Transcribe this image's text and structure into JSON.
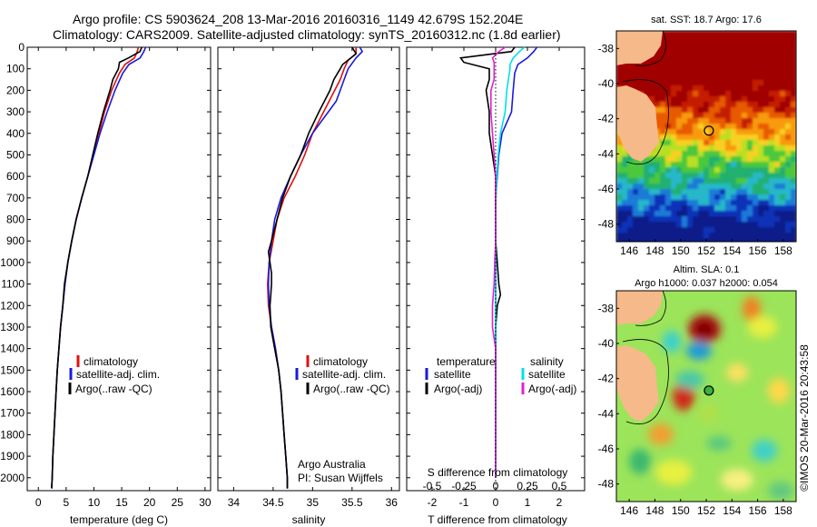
{
  "header": {
    "line1": "Argo profile: CS 5903624_208 13-Mar-2016 20160316_1149 42.679S 152.204E",
    "line2": "Climatology: CARS2009. Satellite-adjusted climatology: synTS_20160312.nc (1.8d earlier)"
  },
  "credit": "©IMOS 20-Mar-2016 20:43:58",
  "colors": {
    "climatology": "#e01010",
    "satellite": "#1a1adc",
    "argo": "#000000",
    "sat_temp_diff": "#00e0e8",
    "argo_sal_diff": "#e020d0"
  },
  "chart_data": [
    {
      "type": "line",
      "panel": "temperature",
      "xlabel": "temperature (deg C)",
      "ylabel": "",
      "xlim": [
        -2,
        31
      ],
      "ylim": [
        2060,
        0
      ],
      "xticks": [
        0,
        5,
        10,
        15,
        20,
        25,
        30
      ],
      "yticks": [
        0,
        100,
        200,
        300,
        400,
        500,
        600,
        700,
        800,
        900,
        1000,
        1100,
        1200,
        1300,
        1400,
        1500,
        1600,
        1700,
        1800,
        1900,
        2000
      ],
      "legend": [
        "climatology",
        "satellite-adj. clim.",
        "Argo(..raw -QC)"
      ],
      "series": [
        {
          "name": "climatology",
          "color": "climatology",
          "depth": [
            0,
            20,
            50,
            80,
            120,
            200,
            300,
            400,
            500,
            600,
            700,
            800,
            900,
            1000,
            1100,
            1200,
            1300,
            1400,
            1500,
            1600,
            1700,
            1800,
            1900,
            2000,
            2050
          ],
          "values": [
            18.0,
            17.8,
            17.3,
            15.6,
            14.6,
            13.2,
            11.9,
            10.9,
            9.9,
            8.9,
            7.8,
            6.8,
            6.0,
            5.3,
            4.8,
            4.4,
            4.0,
            3.7,
            3.4,
            3.2,
            3.0,
            2.8,
            2.6,
            2.5,
            2.4
          ]
        },
        {
          "name": "satellite-adj. clim.",
          "color": "satellite",
          "depth": [
            0,
            20,
            50,
            80,
            120,
            200,
            300,
            400,
            500,
            600,
            700,
            800,
            900,
            1000,
            1100,
            1200,
            1300,
            1400,
            1500,
            1600,
            1700,
            1800,
            1900,
            2000,
            2050
          ],
          "values": [
            19.3,
            19.0,
            18.3,
            16.3,
            15.2,
            13.8,
            12.4,
            11.1,
            10.0,
            8.9,
            7.8,
            6.8,
            6.0,
            5.3,
            4.8,
            4.4,
            4.0,
            3.7,
            3.4,
            3.2,
            3.0,
            2.8,
            2.6,
            2.5,
            2.4
          ]
        },
        {
          "name": "Argo(..raw -QC)",
          "color": "argo",
          "depth": [
            0,
            20,
            50,
            70,
            100,
            150,
            200,
            300,
            400,
            500,
            600,
            700,
            800,
            900,
            1000,
            1100,
            1200,
            1300,
            1400,
            1500,
            1600,
            1700,
            1800,
            1900,
            2000,
            2050
          ],
          "values": [
            18.6,
            18.3,
            16.2,
            14.6,
            14.4,
            13.4,
            12.9,
            11.7,
            10.7,
            9.8,
            8.9,
            7.8,
            6.8,
            6.0,
            5.3,
            4.7,
            4.4,
            4.0,
            3.7,
            3.4,
            3.2,
            3.0,
            2.8,
            2.6,
            2.5,
            2.4
          ]
        }
      ]
    },
    {
      "type": "line",
      "panel": "salinity",
      "xlabel": "salinity",
      "ylabel": "",
      "xlim": [
        33.8,
        36.1
      ],
      "ylim": [
        2060,
        0
      ],
      "xticks": [
        34,
        34.5,
        35,
        35.5,
        36
      ],
      "legend": [
        "climatology",
        "satellite-adj. clim.",
        "Argo(..raw -QC)"
      ],
      "annotation": [
        "Argo Australia",
        "PI: Susan Wijffels"
      ],
      "series": [
        {
          "name": "climatology",
          "color": "climatology",
          "depth": [
            0,
            30,
            60,
            100,
            150,
            200,
            300,
            400,
            500,
            600,
            700,
            800,
            900,
            1000,
            1100,
            1200,
            1300,
            1400,
            1500,
            1600,
            1700,
            1800,
            1900,
            2000,
            2050
          ],
          "values": [
            35.55,
            35.55,
            35.45,
            35.4,
            35.35,
            35.28,
            35.14,
            35.0,
            34.9,
            34.78,
            34.64,
            34.55,
            34.5,
            34.45,
            34.43,
            34.44,
            34.48,
            34.53,
            34.57,
            34.6,
            34.62,
            34.64,
            34.66,
            34.68,
            34.68
          ]
        },
        {
          "name": "satellite-adj. clim.",
          "color": "satellite",
          "depth": [
            0,
            20,
            50,
            100,
            150,
            200,
            250,
            300,
            350,
            400,
            500,
            600,
            700,
            800,
            900,
            1000,
            1100,
            1200,
            1300,
            1400,
            1500,
            1600,
            1700,
            1800,
            1900,
            2000,
            2050
          ],
          "values": [
            35.6,
            35.63,
            35.55,
            35.45,
            35.4,
            35.35,
            35.3,
            35.2,
            35.1,
            35.0,
            34.85,
            34.72,
            34.6,
            34.52,
            34.48,
            34.45,
            34.44,
            34.45,
            34.48,
            34.53,
            34.57,
            34.6,
            34.62,
            34.64,
            34.66,
            34.68,
            34.68
          ]
        },
        {
          "name": "Argo(..raw -QC)",
          "color": "argo",
          "depth": [
            0,
            30,
            60,
            80,
            100,
            150,
            200,
            300,
            400,
            500,
            600,
            700,
            800,
            900,
            950,
            1000,
            1050,
            1100,
            1150,
            1200,
            1300,
            1400,
            1500,
            1600,
            1700,
            1800,
            1900,
            2000,
            2050
          ],
          "values": [
            35.5,
            35.55,
            35.45,
            35.38,
            35.35,
            35.27,
            35.22,
            35.08,
            34.95,
            34.85,
            34.72,
            34.62,
            34.55,
            34.48,
            34.44,
            34.46,
            34.48,
            34.48,
            34.47,
            34.46,
            34.47,
            34.52,
            34.57,
            34.6,
            34.62,
            34.64,
            34.66,
            34.68,
            34.68
          ]
        }
      ]
    },
    {
      "type": "line",
      "panel": "difference",
      "xlabel": "T difference from climatology",
      "xlabel_top": "S difference from climatology",
      "xlim": [
        -2.8,
        2.8
      ],
      "ylim": [
        2060,
        0
      ],
      "xticks": [
        -2,
        -1,
        0,
        1,
        2
      ],
      "xticks_s": [
        -0.5,
        -0.25,
        0,
        0.25,
        0.5
      ],
      "legend_groups": [
        {
          "title": "temperature",
          "items": [
            "satellite",
            "Argo(-adj)"
          ]
        },
        {
          "title": "salinity",
          "items": [
            "satellite",
            "Argo(-adj)"
          ]
        }
      ],
      "series": [
        {
          "name": "satellite",
          "group": "temperature",
          "color": "satellite",
          "depth": [
            0,
            20,
            50,
            80,
            120,
            200,
            300,
            400,
            500,
            600,
            700,
            800,
            900,
            1000,
            1200,
            1500,
            1800,
            2000
          ],
          "values": [
            1.3,
            1.2,
            1.0,
            0.7,
            0.6,
            0.55,
            0.5,
            0.2,
            0.1,
            0.05,
            0.0,
            0.0,
            0.0,
            0.0,
            0.0,
            0.0,
            0.0,
            0.0
          ]
        },
        {
          "name": "Argo(-adj)",
          "group": "temperature",
          "color": "argo",
          "depth": [
            0,
            20,
            50,
            70,
            100,
            150,
            200,
            300,
            400,
            500,
            600,
            700,
            800,
            900,
            1000,
            1100,
            1150,
            1200,
            1300,
            1400,
            1500,
            1600,
            1700,
            1800,
            1900,
            2000
          ],
          "values": [
            0.6,
            0.5,
            -1.1,
            -1.0,
            -0.2,
            -0.2,
            -0.3,
            -0.2,
            -0.2,
            -0.1,
            0.0,
            0.0,
            0.0,
            0.0,
            0.05,
            0.1,
            0.15,
            0.05,
            0.0,
            0.0,
            0.0,
            0.0,
            0.0,
            0.0,
            0.0,
            0.0
          ]
        },
        {
          "name": "satellite",
          "group": "salinity",
          "color": "sat_temp_diff",
          "depth": [
            0,
            20,
            50,
            80,
            100,
            200,
            300,
            400,
            500,
            600,
            700,
            800,
            900,
            1000,
            1200,
            1500,
            1800,
            2000
          ],
          "values": [
            0.9,
            0.75,
            0.55,
            0.45,
            0.45,
            0.35,
            0.3,
            0.15,
            0.08,
            0.04,
            0.01,
            0.0,
            0.0,
            0.0,
            0.0,
            0.0,
            0.0,
            0.0
          ]
        },
        {
          "name": "Argo(-adj)",
          "group": "salinity",
          "color": "argo_sal_diff",
          "depth": [
            0,
            20,
            50,
            70,
            100,
            150,
            200,
            300,
            400,
            500,
            600,
            700,
            800,
            900,
            1000,
            1100,
            1200,
            1300,
            1400,
            1500,
            1800,
            2000
          ],
          "values": [
            0.3,
            0.1,
            -0.1,
            -0.05,
            -0.05,
            -0.05,
            -0.15,
            -0.15,
            -0.1,
            -0.05,
            0.0,
            0.0,
            0.0,
            0.0,
            -0.03,
            -0.05,
            -0.1,
            -0.1,
            0.0,
            0.0,
            0.0,
            0.0
          ]
        }
      ]
    },
    {
      "type": "heatmap",
      "panel": "sst-map",
      "title": "sat. SST: 18.7 Argo: 17.6",
      "xlim": [
        145,
        159
      ],
      "ylim": [
        -49,
        -37
      ],
      "xticks": [
        146,
        148,
        150,
        152,
        154,
        156,
        158
      ],
      "yticks": [
        -38,
        -40,
        -42,
        -44,
        -46,
        -48
      ],
      "argo_position": {
        "lon": 152.204,
        "lat": -42.679
      }
    },
    {
      "type": "heatmap",
      "panel": "sla-map",
      "title": [
        "Altim. SLA: 0.1",
        "Argo h1000: 0.037 h2000: 0.054"
      ],
      "xlim": [
        145,
        159
      ],
      "ylim": [
        -49,
        -37
      ],
      "xticks": [
        146,
        148,
        150,
        152,
        154,
        156,
        158
      ],
      "yticks": [
        -38,
        -40,
        -42,
        -44,
        -46,
        -48
      ],
      "argo_position": {
        "lon": 152.204,
        "lat": -42.679
      }
    }
  ]
}
